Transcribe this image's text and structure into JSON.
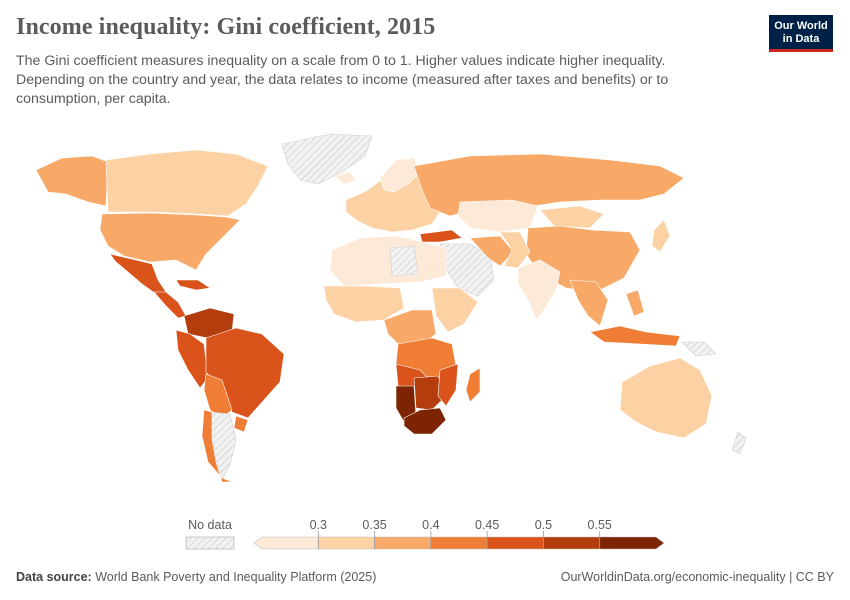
{
  "title": "Income inequality: Gini coefficient, 2015",
  "subtitle": "The Gini coefficient measures inequality on a scale from 0 to 1. Higher values indicate higher inequality. Depending on the country and year, the data relates to income (measured after taxes and benefits) or to consumption, per capita.",
  "logo": {
    "line1": "Our World",
    "line2": "in Data"
  },
  "legend": {
    "no_data_label": "No data",
    "ticks": [
      "0.3",
      "0.35",
      "0.4",
      "0.45",
      "0.5",
      "0.55"
    ],
    "colors": [
      "#fde9d7",
      "#fcd2a5",
      "#f9a967",
      "#f07d35",
      "#d9531b",
      "#b33d0d",
      "#7c2404"
    ],
    "no_data_color": "#e8e8e8"
  },
  "footer": {
    "source_label": "Data source:",
    "source_text": "World Bank Poverty and Inequality Platform (2025)",
    "url_text": "OurWorldinData.org/economic-inequality | CC BY"
  }
}
